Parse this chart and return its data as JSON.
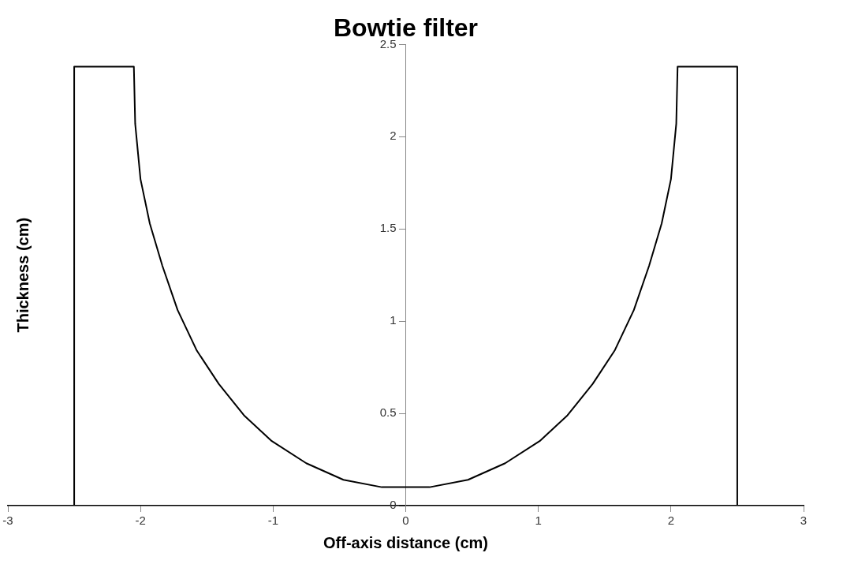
{
  "chart_data": {
    "type": "line",
    "title": "Bowtie filter",
    "xlabel": "Off-axis distance (cm)",
    "ylabel": "Thickness (cm)",
    "series": [
      {
        "color": "#000000",
        "x": [
          -2.5,
          -2.5,
          -2.05,
          -2.04,
          -2.0,
          -1.93,
          -1.835,
          -1.72,
          -1.575,
          -1.41,
          -1.22,
          -1.01,
          -0.75,
          -0.47,
          -0.18,
          0,
          0.18,
          0.47,
          0.75,
          1.01,
          1.22,
          1.41,
          1.575,
          1.72,
          1.835,
          1.93,
          2.0,
          2.04,
          2.05,
          2.5,
          2.5
        ],
        "values": [
          0,
          2.38,
          2.38,
          2.07,
          1.77,
          1.53,
          1.3,
          1.06,
          0.84,
          0.66,
          0.49,
          0.35,
          0.23,
          0.14,
          0.1,
          0.1,
          0.1,
          0.14,
          0.23,
          0.35,
          0.49,
          0.66,
          0.84,
          1.06,
          1.3,
          1.53,
          1.77,
          2.07,
          2.38,
          2.38,
          0
        ]
      }
    ],
    "xlim": [
      -3,
      3
    ],
    "xticks": [
      -3,
      -2,
      -1,
      0,
      1,
      2,
      3
    ],
    "ylim": [
      0,
      2.5
    ],
    "yticks": [
      0,
      0.5,
      1,
      1.5,
      2,
      2.5
    ],
    "grid": false,
    "legend": false,
    "marker": "none",
    "line_style": "solid"
  }
}
